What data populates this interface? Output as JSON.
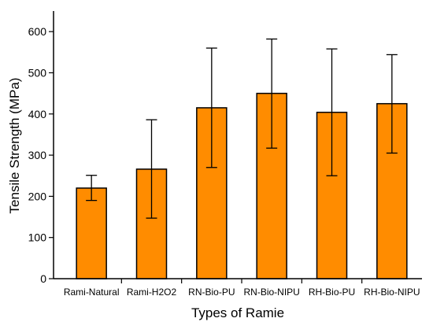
{
  "chart_data": {
    "type": "bar",
    "title": "",
    "xlabel": "Types of Ramie",
    "ylabel": "Tensile Strength (MPa)",
    "ylim": [
      0,
      650
    ],
    "yticks": [
      "0",
      "100",
      "200",
      "300",
      "400",
      "500",
      "600"
    ],
    "grid": false,
    "legend": "none",
    "categories": [
      "Rami-Natural",
      "Rami-H2O2",
      "RN-Bio-PU",
      "RN-Bio-NIPU",
      "RH-Bio-PU",
      "RH-Bio-NIPU"
    ],
    "values": [
      220,
      266,
      415,
      450,
      404,
      425
    ],
    "error_low": [
      190,
      147,
      270,
      317,
      250,
      305
    ],
    "error_high": [
      251,
      386,
      560,
      582,
      558,
      544
    ],
    "colors": {
      "bar_fill": "#FF8C00",
      "bar_stroke": "#000000",
      "axis": "#000000",
      "error_bar": "#000000"
    }
  }
}
